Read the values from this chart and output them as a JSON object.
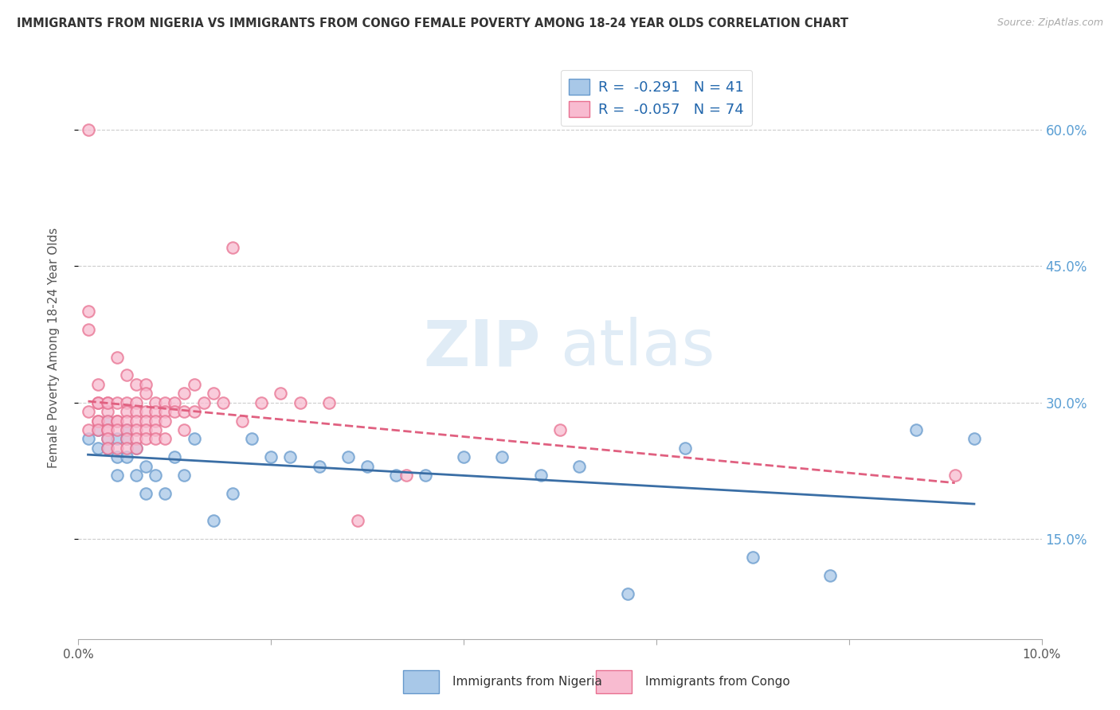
{
  "title": "IMMIGRANTS FROM NIGERIA VS IMMIGRANTS FROM CONGO FEMALE POVERTY AMONG 18-24 YEAR OLDS CORRELATION CHART",
  "source": "Source: ZipAtlas.com",
  "ylabel": "Female Poverty Among 18-24 Year Olds",
  "y_ticks_right": [
    "15.0%",
    "30.0%",
    "45.0%",
    "60.0%"
  ],
  "y_ticks_right_vals": [
    0.15,
    0.3,
    0.45,
    0.6
  ],
  "xlim": [
    0.0,
    0.1
  ],
  "ylim": [
    0.04,
    0.68
  ],
  "nigeria_color": "#A8C8E8",
  "nigeria_edge": "#6699CC",
  "congo_color": "#F8BBD0",
  "congo_edge": "#E87090",
  "nigeria_line_color": "#3A6EA5",
  "congo_line_color": "#E06080",
  "nigeria_R": -0.291,
  "nigeria_N": 41,
  "congo_R": -0.057,
  "congo_N": 74,
  "watermark_zip": "ZIP",
  "watermark_atlas": "atlas",
  "legend_label_nigeria": "Immigrants from Nigeria",
  "legend_label_congo": "Immigrants from Congo",
  "nigeria_scatter_x": [
    0.001,
    0.002,
    0.002,
    0.003,
    0.003,
    0.003,
    0.004,
    0.004,
    0.004,
    0.005,
    0.005,
    0.005,
    0.006,
    0.006,
    0.007,
    0.007,
    0.008,
    0.009,
    0.01,
    0.011,
    0.012,
    0.014,
    0.016,
    0.018,
    0.02,
    0.022,
    0.025,
    0.028,
    0.03,
    0.033,
    0.036,
    0.04,
    0.044,
    0.048,
    0.052,
    0.057,
    0.063,
    0.07,
    0.078,
    0.087,
    0.093
  ],
  "nigeria_scatter_y": [
    0.26,
    0.27,
    0.25,
    0.26,
    0.25,
    0.28,
    0.24,
    0.26,
    0.22,
    0.26,
    0.24,
    0.27,
    0.25,
    0.22,
    0.23,
    0.2,
    0.22,
    0.2,
    0.24,
    0.22,
    0.26,
    0.17,
    0.2,
    0.26,
    0.24,
    0.24,
    0.23,
    0.24,
    0.23,
    0.22,
    0.22,
    0.24,
    0.24,
    0.22,
    0.23,
    0.09,
    0.25,
    0.13,
    0.11,
    0.27,
    0.26
  ],
  "congo_scatter_x": [
    0.001,
    0.001,
    0.001,
    0.001,
    0.001,
    0.002,
    0.002,
    0.002,
    0.002,
    0.002,
    0.002,
    0.003,
    0.003,
    0.003,
    0.003,
    0.003,
    0.003,
    0.003,
    0.003,
    0.004,
    0.004,
    0.004,
    0.004,
    0.004,
    0.004,
    0.005,
    0.005,
    0.005,
    0.005,
    0.005,
    0.005,
    0.005,
    0.006,
    0.006,
    0.006,
    0.006,
    0.006,
    0.006,
    0.006,
    0.007,
    0.007,
    0.007,
    0.007,
    0.007,
    0.007,
    0.008,
    0.008,
    0.008,
    0.008,
    0.008,
    0.009,
    0.009,
    0.009,
    0.009,
    0.01,
    0.01,
    0.011,
    0.011,
    0.011,
    0.012,
    0.012,
    0.013,
    0.014,
    0.015,
    0.016,
    0.017,
    0.019,
    0.021,
    0.023,
    0.026,
    0.029,
    0.034,
    0.05,
    0.091
  ],
  "congo_scatter_y": [
    0.6,
    0.4,
    0.38,
    0.29,
    0.27,
    0.32,
    0.3,
    0.28,
    0.3,
    0.28,
    0.27,
    0.3,
    0.29,
    0.28,
    0.27,
    0.3,
    0.27,
    0.26,
    0.25,
    0.35,
    0.3,
    0.28,
    0.28,
    0.27,
    0.25,
    0.33,
    0.3,
    0.29,
    0.28,
    0.27,
    0.26,
    0.25,
    0.32,
    0.3,
    0.29,
    0.28,
    0.27,
    0.26,
    0.25,
    0.32,
    0.31,
    0.29,
    0.28,
    0.27,
    0.26,
    0.3,
    0.29,
    0.28,
    0.27,
    0.26,
    0.3,
    0.29,
    0.28,
    0.26,
    0.3,
    0.29,
    0.31,
    0.29,
    0.27,
    0.32,
    0.29,
    0.3,
    0.31,
    0.3,
    0.47,
    0.28,
    0.3,
    0.31,
    0.3,
    0.3,
    0.17,
    0.22,
    0.27,
    0.22
  ]
}
